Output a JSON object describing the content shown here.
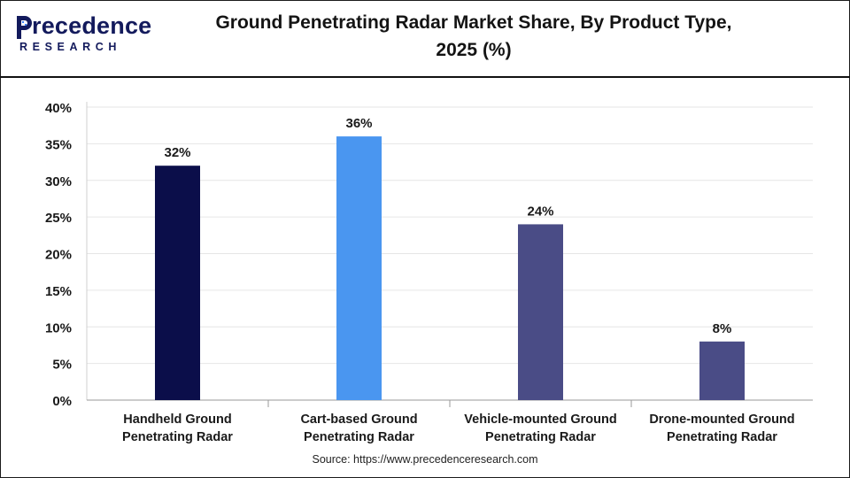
{
  "header": {
    "logo_word": "recedence",
    "logo_sub": "RESEARCH",
    "title_line1": "Ground Penetrating Radar Market Share, By Product Type,",
    "title_line2": "2025 (%)"
  },
  "chart_data": {
    "type": "bar",
    "categories": [
      [
        "Handheld Ground",
        "Penetrating Radar"
      ],
      [
        "Cart-based Ground",
        "Penetrating Radar"
      ],
      [
        "Vehicle-mounted Ground",
        "Penetrating Radar"
      ],
      [
        "Drone-mounted Ground",
        "Penetrating Radar"
      ]
    ],
    "values": [
      32,
      36,
      24,
      8
    ],
    "data_labels": [
      "32%",
      "36%",
      "24%",
      "8%"
    ],
    "colors": [
      "#0b0e4a",
      "#4a96f0",
      "#4a4c86",
      "#4a4c86"
    ],
    "yticks": [
      0,
      5,
      10,
      15,
      20,
      25,
      30,
      35,
      40
    ],
    "ytick_labels": [
      "0%",
      "5%",
      "10%",
      "15%",
      "20%",
      "25%",
      "30%",
      "35%",
      "40%"
    ],
    "ylim": [
      0,
      40
    ],
    "grid": true
  },
  "footer": {
    "source": "Source: https://www.precedenceresearch.com"
  }
}
